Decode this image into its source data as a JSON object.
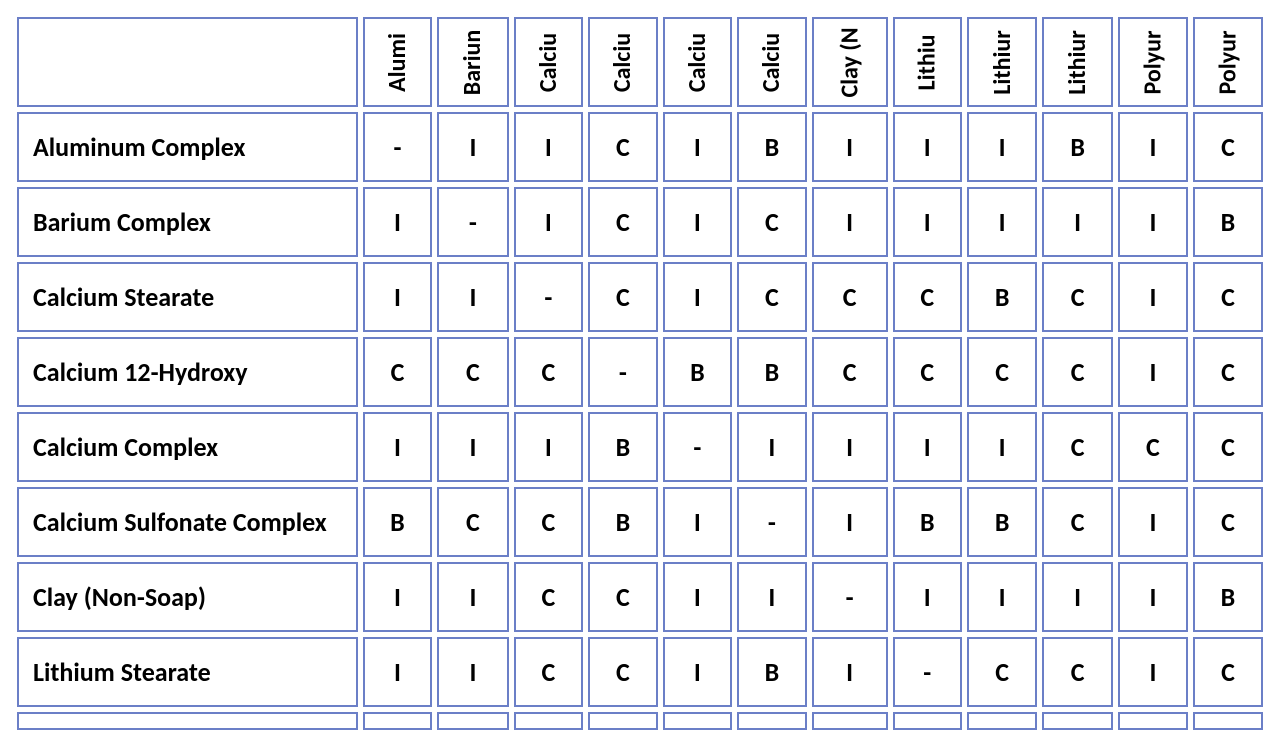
{
  "table": {
    "type": "table",
    "border_color": "#6b7fc7",
    "background_color": "#ffffff",
    "text_color": "#000000",
    "font_family": "Calibri",
    "header_fontsize": 24,
    "row_label_fontsize": 26,
    "cell_fontsize": 26,
    "border_width": 2,
    "cell_spacing": 5,
    "row_header_width": 364,
    "data_col_width": 70,
    "header_row_height": 90,
    "data_row_height": 70,
    "columns": [
      "Alumi",
      "Bariun",
      "Calciu",
      "Calciu",
      "Calciu",
      "Calciu",
      "Clay (N",
      "Lithiu",
      "Lithiur",
      "Lithiur",
      "Polyur",
      "Polyur"
    ],
    "rows": [
      {
        "label": "Aluminum Complex",
        "cells": [
          "-",
          "I",
          "I",
          "C",
          "I",
          "B",
          "I",
          "I",
          "I",
          "B",
          "I",
          "C"
        ]
      },
      {
        "label": "Barium Complex",
        "cells": [
          "I",
          "-",
          "I",
          "C",
          "I",
          "C",
          "I",
          "I",
          "I",
          "I",
          "I",
          "B"
        ]
      },
      {
        "label": "Calcium Stearate",
        "cells": [
          "I",
          "I",
          "-",
          "C",
          "I",
          "C",
          "C",
          "C",
          "B",
          "C",
          "I",
          "C"
        ]
      },
      {
        "label": "Calcium 12-Hydroxy",
        "cells": [
          "C",
          "C",
          "C",
          "-",
          "B",
          "B",
          "C",
          "C",
          "C",
          "C",
          "I",
          "C"
        ]
      },
      {
        "label": "Calcium Complex",
        "cells": [
          "I",
          "I",
          "I",
          "B",
          "-",
          "I",
          "I",
          "I",
          "I",
          "C",
          "C",
          "C"
        ]
      },
      {
        "label": "Calcium Sulfonate Complex",
        "cells": [
          "B",
          "C",
          "C",
          "B",
          "I",
          "-",
          "I",
          "B",
          "B",
          "C",
          "I",
          "C"
        ]
      },
      {
        "label": "Clay (Non-Soap)",
        "cells": [
          "I",
          "I",
          "C",
          "C",
          "I",
          "I",
          "-",
          "I",
          "I",
          "I",
          "I",
          "B"
        ]
      },
      {
        "label": "Lithium Stearate",
        "cells": [
          "I",
          "I",
          "C",
          "C",
          "I",
          "B",
          "I",
          "-",
          "C",
          "C",
          "I",
          "C"
        ]
      }
    ]
  }
}
